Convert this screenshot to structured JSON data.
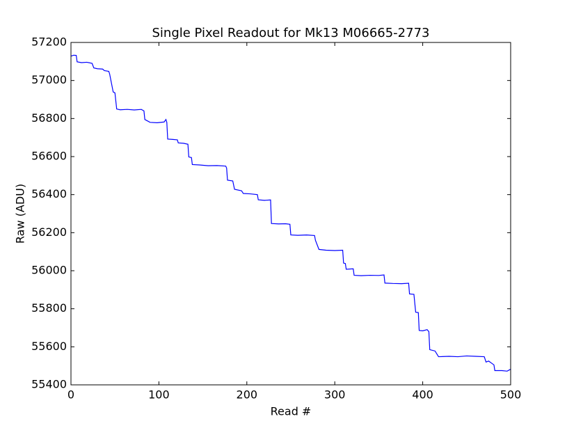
{
  "chart_data": {
    "type": "line",
    "title": "Single Pixel Readout for Mk13 M06665-2773",
    "x_label": "Read #",
    "y_label": "Raw (ADU)",
    "xlim": [
      0,
      500
    ],
    "xticks": [
      0,
      100,
      200,
      300,
      400,
      500
    ],
    "ylim": [
      55400,
      57200
    ],
    "yticks": [
      55400,
      55600,
      55800,
      56000,
      56200,
      56400,
      56600,
      56800,
      57000,
      57200
    ],
    "grid": false,
    "series": [
      {
        "name": "Raw",
        "color": "#0000ff",
        "x": [
          0,
          3,
          6,
          7,
          12,
          18,
          24,
          26,
          30,
          36,
          38,
          43,
          44,
          48,
          50,
          52,
          56,
          64,
          72,
          80,
          83,
          84,
          90,
          98,
          106,
          108,
          109,
          110,
          116,
          121,
          122,
          128,
          133,
          134,
          137,
          138,
          146,
          156,
          166,
          176,
          177,
          178,
          184,
          186,
          194,
          196,
          204,
          212,
          213,
          220,
          227,
          228,
          236,
          244,
          249,
          250,
          258,
          268,
          277,
          278,
          282,
          290,
          300,
          309,
          310,
          312,
          313,
          321,
          322,
          330,
          340,
          350,
          356,
          357,
          366,
          376,
          384,
          385,
          390,
          392,
          395,
          396,
          400,
          405,
          407,
          408,
          414,
          418,
          430,
          440,
          450,
          460,
          470,
          472,
          475,
          478,
          481,
          482,
          490,
          496,
          500
        ],
        "values": [
          57128,
          57133,
          57132,
          57098,
          57094,
          57096,
          57090,
          57066,
          57062,
          57060,
          57052,
          57048,
          57034,
          56940,
          56935,
          56850,
          56846,
          56848,
          56845,
          56848,
          56840,
          56795,
          56780,
          56778,
          56782,
          56795,
          56780,
          56692,
          56690,
          56688,
          56672,
          56670,
          56665,
          56598,
          56595,
          56558,
          56556,
          56552,
          56553,
          56550,
          56540,
          56476,
          56472,
          56428,
          56420,
          56406,
          56404,
          56400,
          56373,
          56370,
          56372,
          56248,
          56246,
          56247,
          56244,
          56188,
          56186,
          56188,
          56185,
          56160,
          56112,
          56108,
          56106,
          56108,
          56040,
          56038,
          56008,
          56010,
          55976,
          55974,
          55976,
          55975,
          55978,
          55935,
          55933,
          55932,
          55934,
          55878,
          55876,
          55782,
          55780,
          55686,
          55684,
          55690,
          55680,
          55585,
          55578,
          55548,
          55550,
          55548,
          55552,
          55550,
          55548,
          55520,
          55525,
          55515,
          55505,
          55475,
          55475,
          55472,
          55482
        ]
      }
    ]
  }
}
